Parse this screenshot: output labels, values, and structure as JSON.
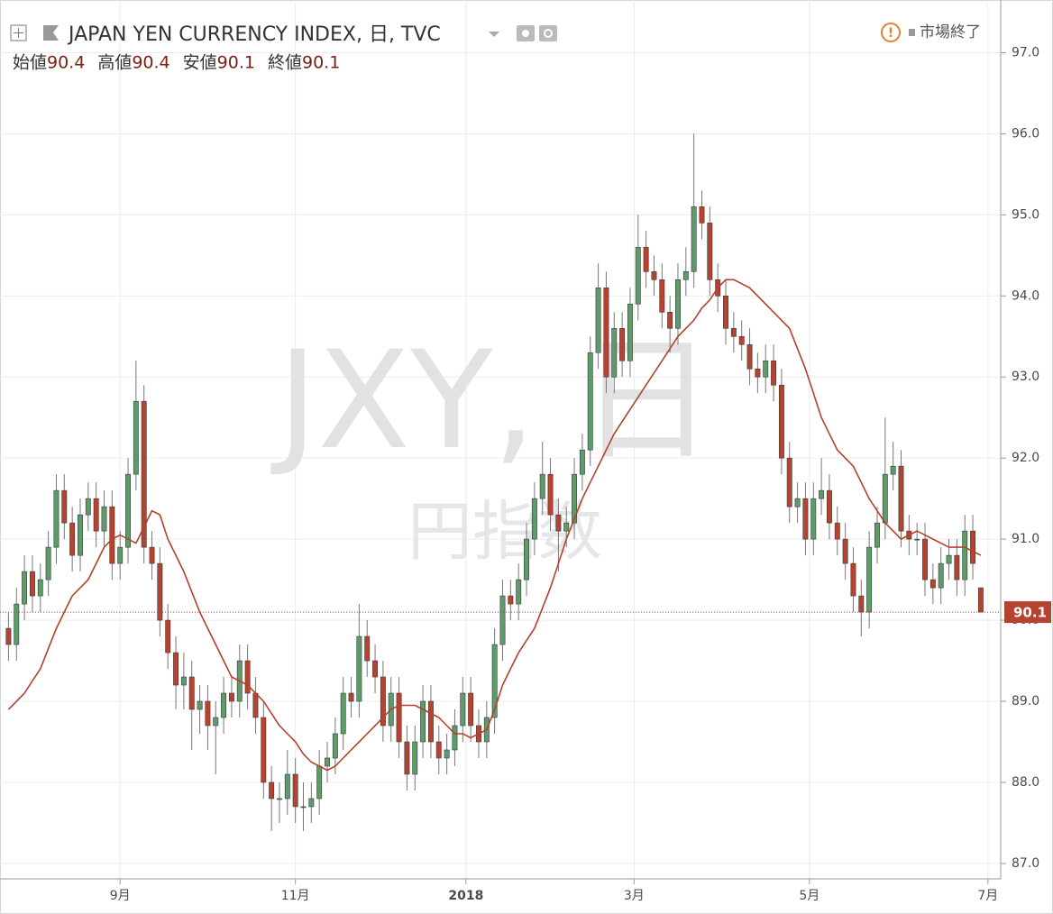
{
  "chart_data": {
    "type": "candlestick",
    "title": "JAPAN YEN CURRENCY INDEX, 日, TVC",
    "status": "市場終了",
    "ohlc_legend": [
      {
        "label": "始値",
        "value": 90.4
      },
      {
        "label": "高値",
        "value": 90.4
      },
      {
        "label": "安値",
        "value": 90.1
      },
      {
        "label": "終値",
        "value": 90.1
      }
    ],
    "watermark": "JXY, 日",
    "watermark_subtitle": "円指数",
    "last_price": 90.1,
    "up_color": "#5d9b6b",
    "down_color": "#b5432f",
    "ma_color": "#b3412b",
    "ylim": [
      86.81,
      97.65
    ],
    "yticks": [
      {
        "value": 87,
        "label": "87.0"
      },
      {
        "value": 88,
        "label": "88.0"
      },
      {
        "value": 89,
        "label": "89.0"
      },
      {
        "value": 90,
        "label": "90.0"
      },
      {
        "value": 91,
        "label": "91.0"
      },
      {
        "value": 92,
        "label": "92.0"
      },
      {
        "value": 93,
        "label": "93.0"
      },
      {
        "value": 94,
        "label": "94.0"
      },
      {
        "value": 95,
        "label": "95.0"
      },
      {
        "value": 96,
        "label": "96.0"
      },
      {
        "value": 97,
        "label": "97.0"
      }
    ],
    "xlim": [
      -0.5,
      124.5
    ],
    "xticks": [
      {
        "value": 14.0,
        "label": "9月"
      },
      {
        "value": 36.0,
        "label": "11月"
      },
      {
        "value": 57.4,
        "label": "2018"
      },
      {
        "value": 78.5,
        "label": "3月"
      },
      {
        "value": 100.5,
        "label": "5月"
      },
      {
        "value": 122.9,
        "label": "7月"
      }
    ],
    "grid": true,
    "open": [
      89.9,
      89.7,
      90.2,
      90.6,
      90.3,
      90.5,
      90.9,
      91.6,
      91.2,
      90.8,
      91.3,
      91.5,
      91.1,
      91.4,
      90.7,
      90.9,
      91.8,
      92.7,
      90.9,
      90.7,
      90.0,
      89.6,
      89.2,
      89.3,
      88.9,
      89.0,
      88.7,
      88.8,
      89.1,
      89.0,
      89.5,
      89.1,
      88.8,
      88.0,
      87.8,
      87.8,
      88.1,
      87.7,
      87.7,
      87.8,
      88.2,
      88.3,
      88.6,
      89.1,
      89.0,
      89.8,
      89.5,
      89.3,
      88.7,
      89.1,
      88.5,
      88.1,
      88.5,
      89.0,
      88.5,
      88.3,
      88.4,
      88.7,
      89.1,
      88.7,
      88.5,
      88.8,
      89.7,
      90.3,
      90.2,
      90.5,
      91.0,
      91.5,
      91.8,
      91.3,
      91.1,
      91.2,
      91.8,
      92.1,
      93.3,
      94.1,
      93.0,
      93.6,
      93.2,
      93.9,
      94.6,
      94.3,
      94.2,
      93.8,
      93.6,
      94.2,
      94.3,
      95.1,
      94.9,
      94.2,
      94.0,
      93.6,
      93.5,
      93.4,
      93.1,
      93.0,
      93.2,
      92.9,
      92.0,
      91.4,
      91.5,
      91.0,
      91.5,
      91.6,
      91.2,
      91.0,
      90.7,
      90.3,
      90.1,
      90.9,
      91.2,
      91.8,
      91.9,
      91.1,
      91.0,
      91.0,
      90.5,
      90.4,
      90.7,
      90.8,
      90.5,
      91.1,
      90.4
    ],
    "high": [
      90.1,
      90.4,
      90.8,
      90.8,
      90.7,
      91.1,
      91.8,
      91.8,
      91.4,
      91.5,
      91.7,
      91.7,
      91.6,
      91.6,
      91.1,
      92.0,
      93.2,
      92.9,
      91.1,
      90.9,
      90.2,
      89.8,
      89.6,
      89.5,
      89.2,
      89.2,
      89.0,
      89.3,
      89.3,
      89.7,
      89.7,
      89.3,
      89.0,
      88.2,
      88.0,
      88.4,
      88.3,
      88.0,
      88.0,
      88.4,
      88.5,
      88.8,
      89.3,
      89.3,
      90.2,
      90.0,
      89.7,
      89.5,
      89.3,
      89.3,
      88.7,
      88.7,
      89.2,
      89.2,
      88.7,
      88.6,
      88.9,
      89.3,
      89.3,
      88.9,
      89.0,
      89.9,
      90.5,
      90.5,
      90.7,
      91.2,
      91.7,
      92.2,
      92.0,
      91.5,
      91.4,
      92.0,
      92.3,
      93.5,
      94.4,
      94.3,
      93.8,
      93.8,
      94.1,
      95.0,
      94.8,
      94.5,
      94.4,
      94.0,
      94.4,
      94.6,
      96.0,
      95.3,
      95.1,
      94.4,
      94.2,
      93.8,
      93.7,
      93.6,
      93.3,
      93.4,
      93.4,
      93.1,
      92.2,
      91.7,
      91.7,
      91.7,
      92.0,
      91.8,
      91.4,
      91.2,
      90.9,
      90.5,
      91.1,
      91.4,
      92.5,
      92.2,
      92.1,
      91.3,
      91.2,
      91.2,
      90.7,
      90.9,
      91.0,
      91.0,
      91.3,
      91.3,
      90.4
    ],
    "low": [
      89.5,
      89.5,
      90.0,
      90.1,
      90.1,
      90.3,
      90.7,
      91.0,
      90.6,
      90.6,
      91.1,
      90.9,
      90.9,
      90.5,
      90.5,
      90.7,
      91.6,
      90.7,
      90.5,
      89.8,
      89.4,
      88.9,
      88.9,
      88.4,
      88.6,
      88.4,
      88.1,
      88.6,
      88.8,
      88.8,
      88.9,
      88.6,
      87.8,
      87.4,
      87.5,
      87.6,
      87.5,
      87.4,
      87.5,
      87.6,
      88.0,
      88.1,
      88.4,
      88.8,
      88.8,
      89.3,
      89.1,
      88.5,
      88.5,
      88.3,
      87.9,
      87.9,
      88.3,
      88.3,
      88.1,
      88.1,
      88.2,
      88.5,
      88.5,
      88.3,
      88.3,
      88.6,
      89.5,
      90.0,
      90.0,
      90.3,
      90.8,
      91.3,
      91.1,
      90.6,
      90.9,
      91.0,
      91.6,
      91.9,
      93.1,
      92.8,
      92.8,
      93.0,
      93.0,
      93.7,
      94.1,
      94.0,
      93.6,
      93.3,
      93.4,
      94.0,
      94.1,
      94.7,
      94.0,
      93.8,
      93.4,
      93.3,
      93.2,
      92.9,
      92.8,
      92.8,
      92.7,
      91.8,
      91.2,
      91.2,
      90.8,
      90.8,
      91.3,
      91.0,
      90.8,
      90.5,
      90.1,
      89.8,
      89.9,
      90.7,
      91.0,
      91.6,
      90.9,
      90.8,
      90.8,
      90.3,
      90.2,
      90.2,
      90.5,
      90.3,
      90.3,
      90.5,
      90.1
    ],
    "close": [
      89.7,
      90.2,
      90.6,
      90.3,
      90.5,
      90.9,
      91.6,
      91.2,
      90.8,
      91.3,
      91.5,
      91.1,
      91.4,
      90.7,
      90.9,
      91.8,
      92.7,
      90.9,
      90.7,
      90.0,
      89.6,
      89.2,
      89.3,
      88.9,
      89.0,
      88.7,
      88.8,
      89.1,
      89.0,
      89.5,
      89.1,
      88.8,
      88.0,
      87.8,
      87.8,
      88.1,
      87.7,
      87.7,
      87.8,
      88.2,
      88.3,
      88.6,
      89.1,
      89.0,
      89.8,
      89.5,
      89.3,
      88.7,
      89.1,
      88.5,
      88.1,
      88.5,
      89.0,
      88.5,
      88.3,
      88.4,
      88.7,
      89.1,
      88.7,
      88.5,
      88.8,
      89.7,
      90.3,
      90.2,
      90.5,
      91.0,
      91.5,
      91.8,
      91.3,
      91.1,
      91.2,
      91.8,
      92.1,
      93.3,
      94.1,
      93.0,
      93.6,
      93.2,
      93.9,
      94.6,
      94.3,
      94.2,
      93.8,
      93.6,
      94.2,
      94.3,
      95.1,
      94.9,
      94.2,
      94.0,
      93.6,
      93.5,
      93.4,
      93.1,
      93.0,
      93.2,
      92.9,
      92.0,
      91.4,
      91.5,
      91.0,
      91.5,
      91.6,
      91.2,
      91.0,
      90.7,
      90.3,
      90.1,
      90.9,
      91.2,
      91.8,
      91.9,
      91.1,
      91.0,
      91.0,
      90.5,
      90.4,
      90.7,
      90.8,
      90.5,
      91.1,
      90.7,
      90.1
    ],
    "moving_average": [
      88.9,
      89.0,
      89.1,
      89.25,
      89.4,
      89.65,
      89.9,
      90.1,
      90.3,
      90.4,
      90.5,
      90.7,
      90.9,
      91.0,
      91.05,
      91.0,
      90.95,
      91.15,
      91.35,
      91.3,
      91.0,
      90.8,
      90.6,
      90.35,
      90.1,
      89.9,
      89.7,
      89.5,
      89.3,
      89.25,
      89.2,
      89.1,
      89.0,
      88.85,
      88.7,
      88.6,
      88.5,
      88.35,
      88.25,
      88.2,
      88.15,
      88.2,
      88.3,
      88.4,
      88.5,
      88.6,
      88.7,
      88.8,
      88.9,
      88.95,
      88.95,
      88.95,
      88.9,
      88.85,
      88.8,
      88.7,
      88.6,
      88.6,
      88.55,
      88.6,
      88.65,
      88.9,
      89.2,
      89.4,
      89.6,
      89.75,
      89.9,
      90.15,
      90.4,
      90.7,
      91.0,
      91.25,
      91.5,
      91.7,
      91.9,
      92.1,
      92.3,
      92.45,
      92.6,
      92.75,
      92.9,
      93.05,
      93.2,
      93.35,
      93.5,
      93.6,
      93.7,
      93.85,
      93.95,
      94.1,
      94.2,
      94.2,
      94.15,
      94.1,
      94.0,
      93.9,
      93.8,
      93.7,
      93.6,
      93.35,
      93.1,
      92.8,
      92.5,
      92.3,
      92.1,
      92.0,
      91.9,
      91.7,
      91.5,
      91.35,
      91.2,
      91.1,
      91.0,
      91.05,
      91.1,
      91.05,
      91.0,
      90.95,
      90.9,
      90.9,
      90.9,
      90.85,
      90.8
    ]
  }
}
